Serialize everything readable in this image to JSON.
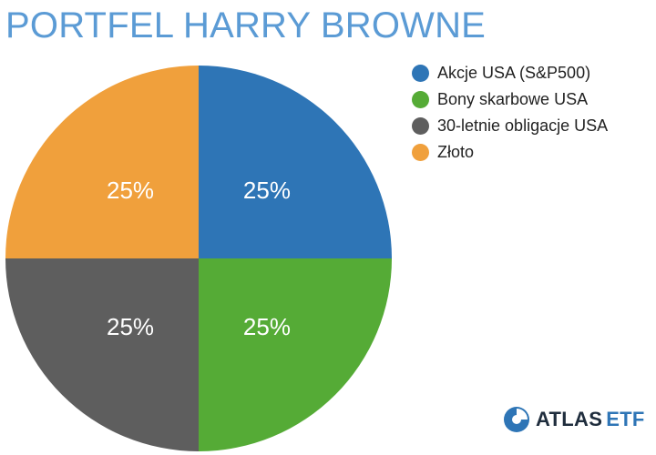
{
  "chart_data": {
    "type": "pie",
    "title": "PORTFEL HARRY BROWNE",
    "categories": [
      "Akcje USA (S&P500)",
      "Bony skarbowe USA",
      "30-letnie obligacje USA",
      "Złoto"
    ],
    "values": [
      25,
      25,
      25,
      25
    ],
    "data_labels": [
      "25%",
      "25%",
      "25%",
      "25%"
    ],
    "colors": [
      "#2e75b6",
      "#55ab36",
      "#5e5e5e",
      "#f0a03c"
    ],
    "start_angle_deg": 0,
    "direction": "clockwise",
    "legend_position": "top-right"
  },
  "logo": {
    "name": "ATLAS",
    "suffix": "ETF",
    "icon": "atlas-logo-icon",
    "colors": [
      "#2e75b6",
      "#1f2d3d"
    ]
  }
}
